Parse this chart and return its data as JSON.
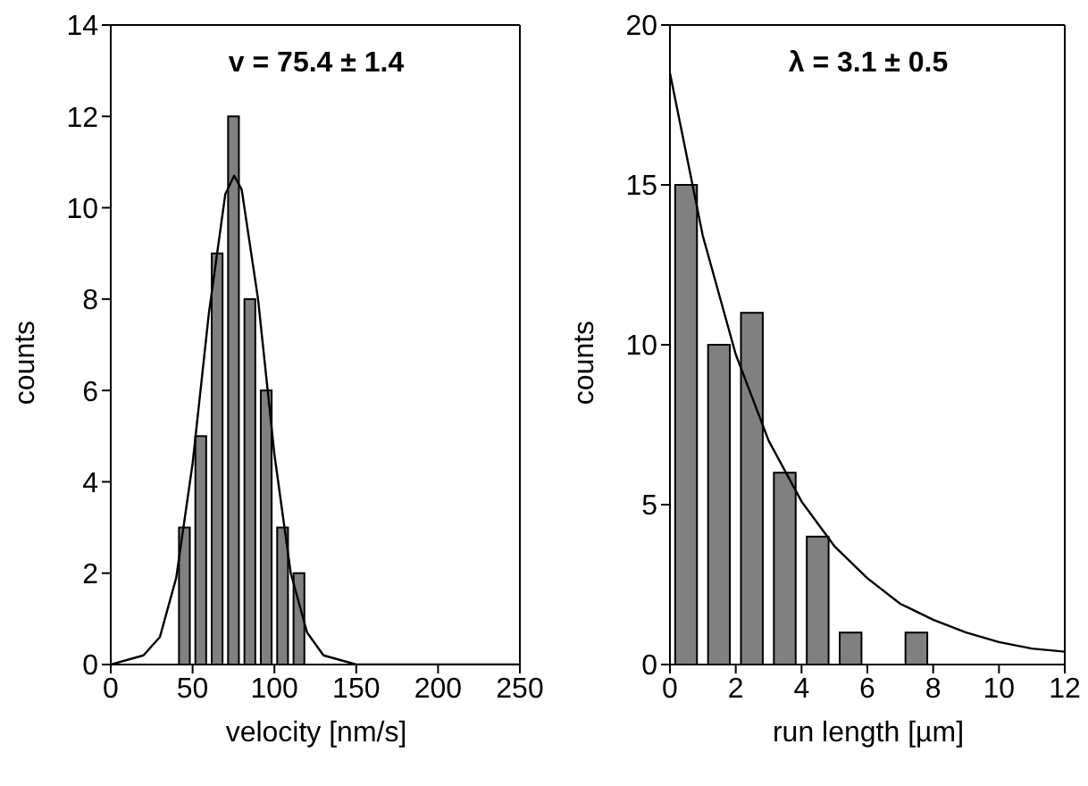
{
  "chart_data": [
    {
      "type": "histogram",
      "title": "v = 75.4 ± 1.4",
      "xlabel": "velocity [nm/s]",
      "ylabel": "counts",
      "bins": [
        40,
        50,
        60,
        70,
        80,
        90,
        100,
        110,
        120
      ],
      "values": [
        3,
        5,
        9,
        12,
        8,
        6,
        3,
        2
      ],
      "color": "#808080",
      "series": [
        {
          "type": "line",
          "color": "#000000",
          "x": [
            0,
            20,
            30,
            40,
            50,
            60,
            70,
            75.4,
            80,
            90,
            100,
            110,
            120,
            130,
            150,
            250
          ],
          "values": [
            0,
            0.2,
            0.6,
            1.9,
            4.4,
            7.7,
            10.3,
            10.7,
            10.4,
            8,
            4.6,
            2,
            0.7,
            0.2,
            0,
            0
          ]
        }
      ],
      "xlim": [
        0,
        250
      ],
      "xticks": [
        0,
        50,
        100,
        150,
        200,
        250
      ],
      "ylim": [
        0,
        14
      ],
      "yticks": [
        0,
        2,
        4,
        6,
        8,
        10,
        12,
        14
      ],
      "grid": false
    },
    {
      "type": "histogram",
      "title": "λ = 3.1 ± 0.5",
      "xlabel": "run length [µm]",
      "ylabel": "counts",
      "bins": [
        0,
        1,
        2,
        3,
        4,
        5,
        6,
        7,
        8
      ],
      "values": [
        15,
        10,
        11,
        6,
        4,
        1,
        0,
        1
      ],
      "color": "#808080",
      "series": [
        {
          "type": "line",
          "color": "#000000",
          "x": [
            0,
            1,
            2,
            3,
            4,
            5,
            6,
            7,
            8,
            9,
            10,
            11,
            12
          ],
          "values": [
            18.5,
            13.4,
            9.7,
            7,
            5.1,
            3.7,
            2.7,
            1.9,
            1.4,
            1,
            0.7,
            0.5,
            0.4
          ]
        }
      ],
      "xlim": [
        0,
        12
      ],
      "xticks": [
        0,
        2,
        4,
        6,
        8,
        10,
        12
      ],
      "ylim": [
        0,
        20
      ],
      "yticks": [
        0,
        5,
        10,
        15,
        20
      ],
      "grid": false
    }
  ]
}
